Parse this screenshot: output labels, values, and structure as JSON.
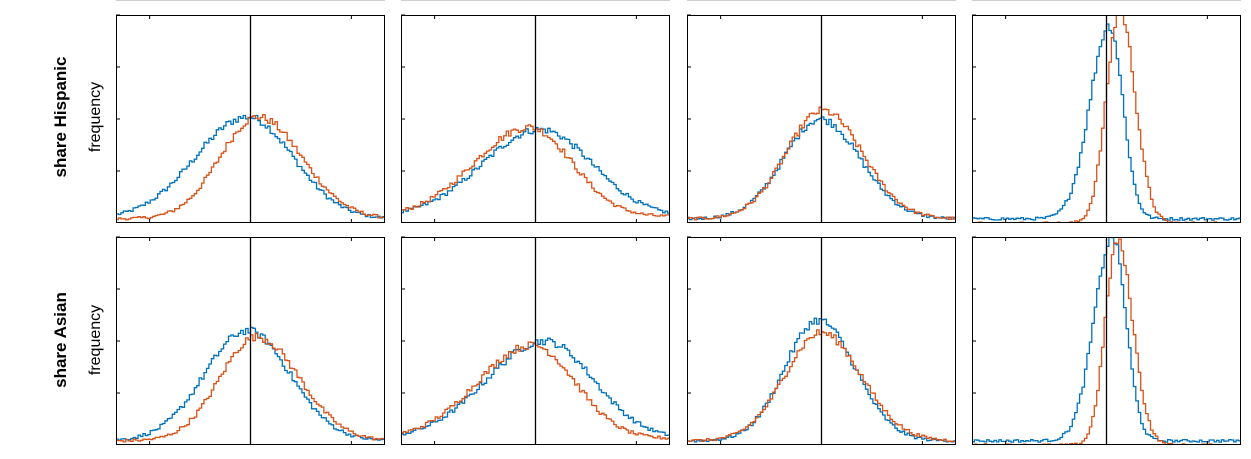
{
  "figure": {
    "rows": [
      {
        "title": "share Hispanic",
        "ylabel": "frequency"
      },
      {
        "title": "share Asian",
        "ylabel": "frequency"
      }
    ],
    "colors": {
      "series_a": "#0072BD",
      "series_b": "#D95319",
      "reference_line": "#000000",
      "axes": "#000000"
    }
  },
  "chart_data": [
    {
      "type": "line",
      "row": "share Hispanic",
      "col": 1,
      "reference_x": 0.0,
      "xlim": [
        -2.2,
        2.2
      ],
      "ylim": [
        0,
        1
      ],
      "series": [
        {
          "color": "#0072BD",
          "center": -0.05,
          "sigma_left": 0.85,
          "sigma_right": 0.75,
          "peak": 0.49,
          "base": 0.02
        },
        {
          "color": "#D95319",
          "center": 0.12,
          "sigma_left": 0.62,
          "sigma_right": 0.72,
          "peak": 0.49,
          "base": 0.02
        }
      ]
    },
    {
      "type": "line",
      "row": "share Hispanic",
      "col": 2,
      "reference_x": 0.0,
      "xlim": [
        -2.2,
        2.2
      ],
      "ylim": [
        0,
        1
      ],
      "series": [
        {
          "color": "#0072BD",
          "center": 0.08,
          "sigma_left": 0.95,
          "sigma_right": 0.85,
          "peak": 0.42,
          "base": 0.03
        },
        {
          "color": "#D95319",
          "center": -0.1,
          "sigma_left": 0.9,
          "sigma_right": 0.7,
          "peak": 0.43,
          "base": 0.03
        }
      ]
    },
    {
      "type": "line",
      "row": "share Hispanic",
      "col": 3,
      "reference_x": 0.0,
      "xlim": [
        -2.2,
        2.2
      ],
      "ylim": [
        0,
        1
      ],
      "series": [
        {
          "color": "#0072BD",
          "center": -0.02,
          "sigma_left": 0.6,
          "sigma_right": 0.65,
          "peak": 0.48,
          "base": 0.02
        },
        {
          "color": "#D95319",
          "center": 0.02,
          "sigma_left": 0.6,
          "sigma_right": 0.65,
          "peak": 0.52,
          "base": 0.02
        }
      ]
    },
    {
      "type": "line",
      "row": "share Hispanic",
      "col": 4,
      "reference_x": 0.0,
      "xlim": [
        -2.2,
        2.2
      ],
      "ylim": [
        0,
        1
      ],
      "series": [
        {
          "color": "#0072BD",
          "center": 0.05,
          "sigma_left": 0.32,
          "sigma_right": 0.22,
          "peak": 0.93,
          "base": 0.02
        },
        {
          "color": "#D95319",
          "center": 0.22,
          "sigma_left": 0.22,
          "sigma_right": 0.25,
          "peak": 1.02,
          "base": 0.0
        }
      ]
    },
    {
      "type": "line",
      "row": "share Asian",
      "col": 1,
      "reference_x": 0.0,
      "xlim": [
        -2.2,
        2.2
      ],
      "ylim": [
        0,
        1
      ],
      "series": [
        {
          "color": "#0072BD",
          "center": -0.05,
          "sigma_left": 0.7,
          "sigma_right": 0.7,
          "peak": 0.53,
          "base": 0.02
        },
        {
          "color": "#D95319",
          "center": 0.1,
          "sigma_left": 0.6,
          "sigma_right": 0.7,
          "peak": 0.5,
          "base": 0.02
        }
      ]
    },
    {
      "type": "line",
      "row": "share Asian",
      "col": 2,
      "reference_x": 0.0,
      "xlim": [
        -2.2,
        2.2
      ],
      "ylim": [
        0,
        1
      ],
      "series": [
        {
          "color": "#0072BD",
          "center": 0.15,
          "sigma_left": 0.95,
          "sigma_right": 0.8,
          "peak": 0.47,
          "base": 0.03
        },
        {
          "color": "#D95319",
          "center": -0.05,
          "sigma_left": 0.9,
          "sigma_right": 0.7,
          "peak": 0.45,
          "base": 0.03
        }
      ]
    },
    {
      "type": "line",
      "row": "share Asian",
      "col": 3,
      "reference_x": 0.0,
      "xlim": [
        -2.2,
        2.2
      ],
      "ylim": [
        0,
        1
      ],
      "series": [
        {
          "color": "#0072BD",
          "center": -0.05,
          "sigma_left": 0.55,
          "sigma_right": 0.6,
          "peak": 0.58,
          "base": 0.02
        },
        {
          "color": "#D95319",
          "center": 0.0,
          "sigma_left": 0.6,
          "sigma_right": 0.65,
          "peak": 0.52,
          "base": 0.02
        }
      ]
    },
    {
      "type": "line",
      "row": "share Asian",
      "col": 4,
      "reference_x": 0.0,
      "xlim": [
        -2.2,
        2.2
      ],
      "ylim": [
        0,
        1
      ],
      "series": [
        {
          "color": "#0072BD",
          "center": 0.1,
          "sigma_left": 0.3,
          "sigma_right": 0.22,
          "peak": 0.98,
          "base": 0.02
        },
        {
          "color": "#D95319",
          "center": 0.18,
          "sigma_left": 0.2,
          "sigma_right": 0.25,
          "peak": 0.98,
          "base": 0.0
        }
      ]
    }
  ]
}
